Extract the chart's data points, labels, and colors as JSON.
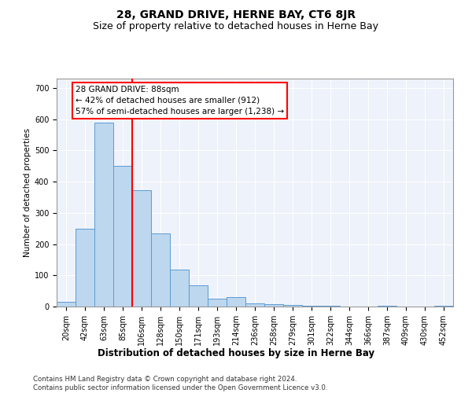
{
  "title": "28, GRAND DRIVE, HERNE BAY, CT6 8JR",
  "subtitle": "Size of property relative to detached houses in Herne Bay",
  "xlabel": "Distribution of detached houses by size in Herne Bay",
  "ylabel": "Number of detached properties",
  "footer_line1": "Contains HM Land Registry data © Crown copyright and database right 2024.",
  "footer_line2": "Contains public sector information licensed under the Open Government Licence v3.0.",
  "bar_labels": [
    "20sqm",
    "42sqm",
    "63sqm",
    "85sqm",
    "106sqm",
    "128sqm",
    "150sqm",
    "171sqm",
    "193sqm",
    "214sqm",
    "236sqm",
    "258sqm",
    "279sqm",
    "301sqm",
    "322sqm",
    "344sqm",
    "366sqm",
    "387sqm",
    "409sqm",
    "430sqm",
    "452sqm"
  ],
  "bar_values": [
    15,
    248,
    590,
    450,
    372,
    235,
    118,
    68,
    25,
    30,
    10,
    8,
    5,
    3,
    2,
    1,
    0,
    2,
    0,
    1,
    2
  ],
  "bar_color": "#bdd7ee",
  "bar_edge_color": "#5b9bd5",
  "vline_color": "red",
  "vline_position": 3.5,
  "annotation_text": "28 GRAND DRIVE: 88sqm\n← 42% of detached houses are smaller (912)\n57% of semi-detached houses are larger (1,238) →",
  "ylim": [
    0,
    730
  ],
  "yticks": [
    0,
    100,
    200,
    300,
    400,
    500,
    600,
    700
  ],
  "background_color": "#eef2fa",
  "grid_color": "white",
  "title_fontsize": 10,
  "subtitle_fontsize": 9,
  "xlabel_fontsize": 8.5,
  "ylabel_fontsize": 7.5,
  "annotation_fontsize": 7.5,
  "tick_fontsize": 7
}
